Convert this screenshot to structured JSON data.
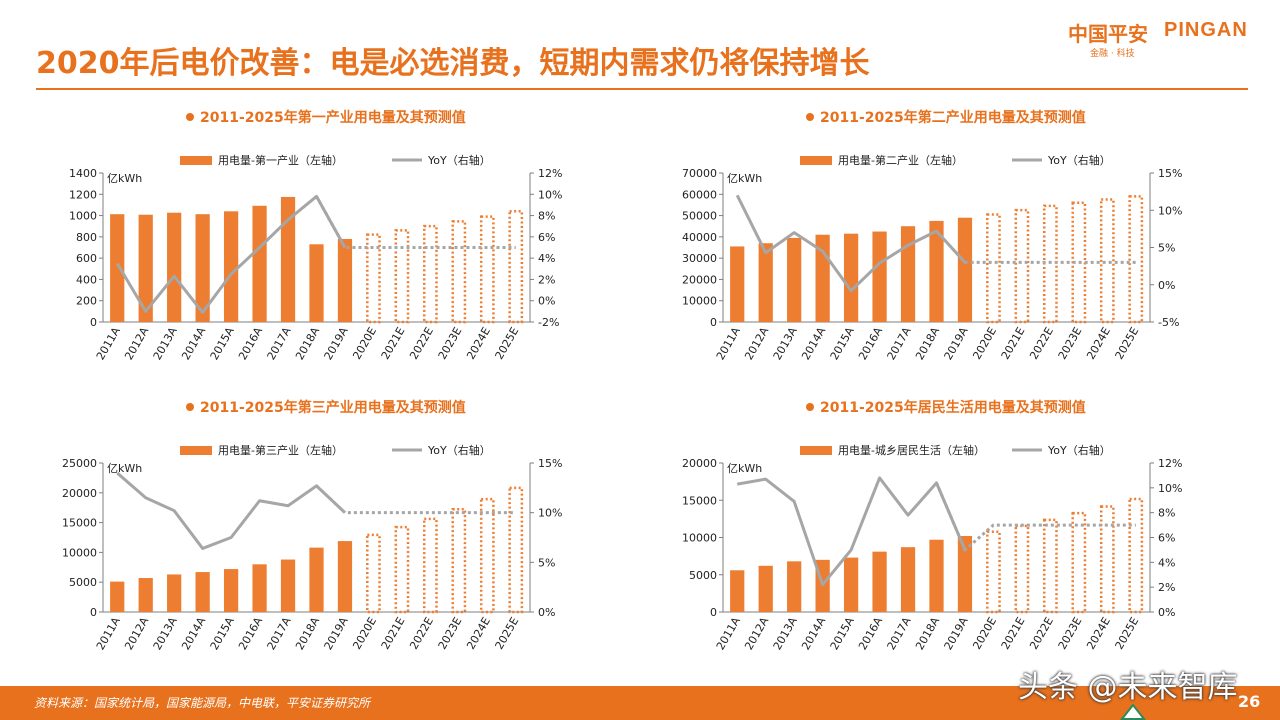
{
  "header": {
    "title": "2020年后电价改善：电是必选消费，短期内需求仍将保持增长",
    "logo_cn": "中国平安",
    "logo_en": "PINGAN",
    "logo_sub": "金融 · 科技"
  },
  "footer": {
    "source": "资料来源：国家统计局，国家能源局，中电联，平安证券研究所",
    "watermark": "头条 @未来智库",
    "page_number": "26"
  },
  "colors": {
    "accent": "#e8711d",
    "bar": "#ed7d31",
    "line": "#a6a6a6"
  },
  "chart_data": [
    {
      "type": "bar",
      "title": "2011-2025年第一产业用电量及其预测值",
      "unit_label": "亿kWh",
      "legend_bar": "用电量-第一产业（左轴）",
      "legend_line": "YoY（右轴）",
      "categories": [
        "2011A",
        "2012A",
        "2013A",
        "2014A",
        "2015A",
        "2016A",
        "2017A",
        "2018A",
        "2019A",
        "2020E",
        "2021E",
        "2022E",
        "2023E",
        "2024E",
        "2025E"
      ],
      "forecast_from_index": 9,
      "values": [
        1013,
        1008,
        1027,
        1013,
        1040,
        1092,
        1175,
        730,
        780,
        830,
        870,
        910,
        955,
        1000,
        1050
      ],
      "yoy": [
        3.5,
        -1.0,
        2.3,
        -1.1,
        2.5,
        5.0,
        7.6,
        9.8,
        5.0,
        5.0,
        5.0,
        5.0,
        5.0,
        5.0,
        5.0
      ],
      "left_axis": {
        "min": 0,
        "max": 1400,
        "step": 200
      },
      "right_axis": {
        "min": -2,
        "max": 12,
        "step": 2,
        "suffix": "%"
      }
    },
    {
      "type": "bar",
      "title": "2011-2025年第二产业用电量及其预测值",
      "unit_label": "亿kWh",
      "legend_bar": "用电量-第二产业（左轴）",
      "legend_line": "YoY（右轴）",
      "categories": [
        "2011A",
        "2012A",
        "2013A",
        "2014A",
        "2015A",
        "2016A",
        "2017A",
        "2018A",
        "2019A",
        "2020E",
        "2021E",
        "2022E",
        "2023E",
        "2024E",
        "2025E"
      ],
      "forecast_from_index": 9,
      "values": [
        35500,
        37000,
        39500,
        41000,
        41500,
        42500,
        45000,
        47500,
        49000,
        51000,
        53000,
        55000,
        56500,
        58000,
        59500
      ],
      "yoy": [
        12.0,
        4.3,
        7.0,
        4.5,
        -0.8,
        2.9,
        5.3,
        7.2,
        3.0,
        3.0,
        3.0,
        3.0,
        3.0,
        3.0,
        3.0
      ],
      "left_axis": {
        "min": 0,
        "max": 70000,
        "step": 10000
      },
      "right_axis": {
        "min": -5,
        "max": 15,
        "step": 5,
        "suffix": "%"
      }
    },
    {
      "type": "bar",
      "title": "2011-2025年第三产业用电量及其预测值",
      "unit_label": "亿kWh",
      "legend_bar": "用电量-第三产业（左轴）",
      "legend_line": "YoY（右轴）",
      "categories": [
        "2011A",
        "2012A",
        "2013A",
        "2014A",
        "2015A",
        "2016A",
        "2017A",
        "2018A",
        "2019A",
        "2020E",
        "2021E",
        "2022E",
        "2023E",
        "2024E",
        "2025E"
      ],
      "forecast_from_index": 9,
      "values": [
        5100,
        5700,
        6300,
        6700,
        7200,
        8000,
        8800,
        10800,
        11900,
        13100,
        14400,
        15800,
        17400,
        19100,
        21000
      ],
      "yoy": [
        14.0,
        11.5,
        10.2,
        6.4,
        7.5,
        11.2,
        10.7,
        12.7,
        10.0,
        10.0,
        10.0,
        10.0,
        10.0,
        10.0,
        10.0
      ],
      "left_axis": {
        "min": 0,
        "max": 25000,
        "step": 5000
      },
      "right_axis": {
        "min": 0,
        "max": 15,
        "step": 5,
        "suffix": "%"
      }
    },
    {
      "type": "bar",
      "title": "2011-2025年居民生活用电量及其预测值",
      "unit_label": "亿kWh",
      "legend_bar": "用电量-城乡居民生活（左轴）",
      "legend_line": "YoY（右轴）",
      "categories": [
        "2011A",
        "2012A",
        "2013A",
        "2014A",
        "2015A",
        "2016A",
        "2017A",
        "2018A",
        "2019A",
        "2020E",
        "2021E",
        "2022E",
        "2023E",
        "2024E",
        "2025E"
      ],
      "forecast_from_index": 9,
      "values": [
        5600,
        6200,
        6800,
        7000,
        7300,
        8100,
        8700,
        9700,
        10200,
        10900,
        11700,
        12500,
        13400,
        14300,
        15300
      ],
      "yoy": [
        10.3,
        10.7,
        8.9,
        2.2,
        5.0,
        10.8,
        7.8,
        10.4,
        5.0,
        7.0,
        7.0,
        7.0,
        7.0,
        7.0,
        7.0
      ],
      "left_axis": {
        "min": 0,
        "max": 20000,
        "step": 5000
      },
      "right_axis": {
        "min": 0,
        "max": 12,
        "step": 2,
        "suffix": "%"
      }
    }
  ]
}
